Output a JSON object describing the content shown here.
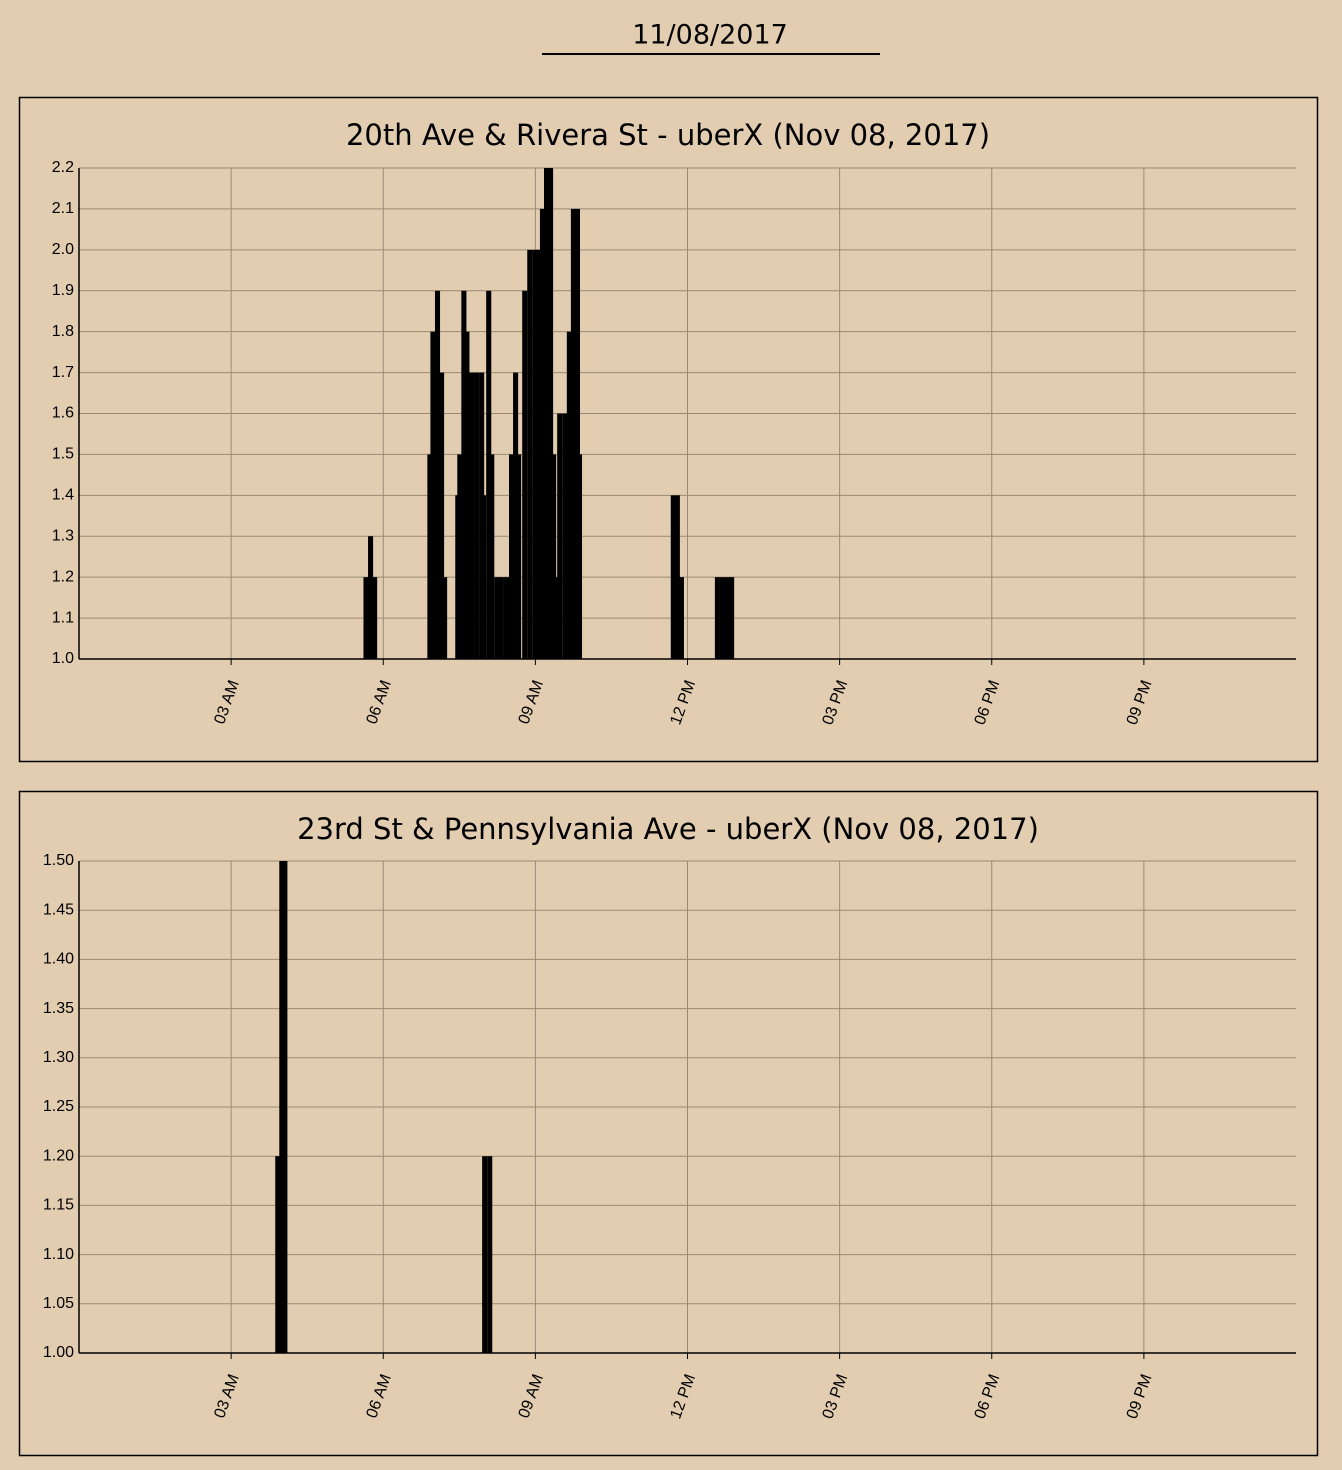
{
  "header": {
    "date": "11/08/2017"
  },
  "chart_data": [
    {
      "type": "bar",
      "title": "20th Ave & Rivera St - uberX (Nov 08, 2017)",
      "color": "#000000",
      "grid": true,
      "x": [
        5.66,
        5.75,
        5.83,
        6.92,
        6.98,
        7.07,
        7.15,
        7.21,
        7.47,
        7.51,
        7.59,
        7.65,
        7.74,
        7.84,
        7.94,
        7.98,
        8.08,
        8.14,
        8.24,
        8.33,
        8.43,
        8.53,
        8.61,
        8.67,
        8.79,
        8.89,
        8.99,
        9.08,
        9.14,
        9.22,
        9.3,
        9.36,
        9.4,
        9.48,
        9.58,
        9.67,
        9.75,
        9.83,
        9.87,
        11.72,
        11.8,
        11.88,
        12.59,
        12.69,
        12.79,
        12.87
      ],
      "values": [
        1.2,
        1.3,
        1.2,
        1.5,
        1.8,
        1.9,
        1.7,
        1.2,
        1.4,
        1.5,
        1.9,
        1.8,
        1.7,
        1.7,
        1.7,
        1.4,
        1.9,
        1.5,
        1.2,
        1.2,
        1.2,
        1.5,
        1.7,
        1.5,
        1.9,
        2.0,
        2.0,
        2.0,
        2.1,
        2.2,
        2.2,
        1.5,
        1.2,
        1.6,
        1.6,
        1.8,
        2.1,
        2.1,
        1.5,
        1.4,
        1.4,
        1.2,
        1.2,
        1.2,
        1.2,
        1.2
      ],
      "xlim": [
        0,
        24
      ],
      "xticks": [
        {
          "value": 3,
          "label": "03 AM"
        },
        {
          "value": 6,
          "label": "06 AM"
        },
        {
          "value": 9,
          "label": "09 AM"
        },
        {
          "value": 12,
          "label": "12 PM"
        },
        {
          "value": 15,
          "label": "03 PM"
        },
        {
          "value": 18,
          "label": "06 PM"
        },
        {
          "value": 21,
          "label": "09 PM"
        }
      ],
      "ylim": [
        1.0,
        2.2
      ],
      "yticks": [
        {
          "value": 1.0,
          "label": "1.0"
        },
        1.1,
        1.2,
        1.3,
        1.4,
        1.5,
        1.6,
        1.7,
        1.8,
        1.9,
        {
          "value": 2.0,
          "label": "2.0"
        },
        2.1,
        2.2
      ]
    },
    {
      "type": "bar",
      "title": "23rd St & Pennsylvania Ave - uberX (Nov 08, 2017)",
      "color": "#000000",
      "grid": true,
      "x": [
        3.92,
        4.0,
        4.06,
        8.0,
        8.1
      ],
      "values": [
        1.2,
        1.5,
        1.5,
        1.2,
        1.2
      ],
      "xlim": [
        0,
        24
      ],
      "xticks": [
        {
          "value": 3,
          "label": "03 AM"
        },
        {
          "value": 6,
          "label": "06 AM"
        },
        {
          "value": 9,
          "label": "09 AM"
        },
        {
          "value": 12,
          "label": "12 PM"
        },
        {
          "value": 15,
          "label": "03 PM"
        },
        {
          "value": 18,
          "label": "06 PM"
        },
        {
          "value": 21,
          "label": "09 PM"
        }
      ],
      "ylim": [
        1.0,
        1.5
      ],
      "yticks": [
        {
          "value": 1.0,
          "label": "1.00"
        },
        1.05,
        {
          "value": 1.1,
          "label": "1.10"
        },
        1.15,
        {
          "value": 1.2,
          "label": "1.20"
        },
        1.25,
        {
          "value": 1.3,
          "label": "1.30"
        },
        1.35,
        {
          "value": 1.4,
          "label": "1.40"
        },
        1.45,
        {
          "value": 1.5,
          "label": "1.50"
        }
      ]
    }
  ]
}
